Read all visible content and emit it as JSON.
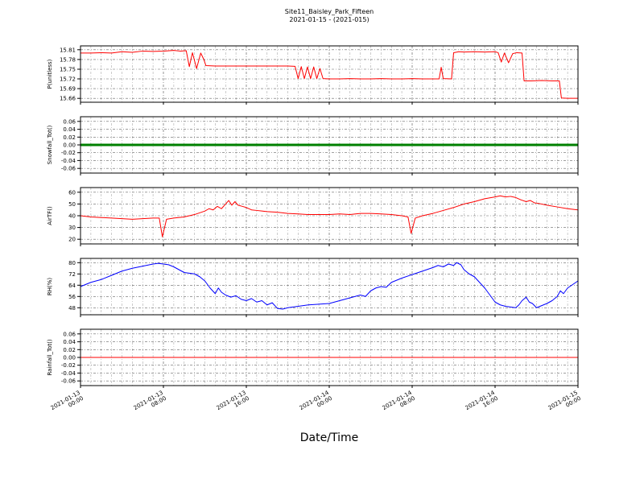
{
  "figure": {
    "title": "Site11_Baisley_Park_Fifteen",
    "subtitle": "2021-01-15 - (2021-015)",
    "xlabel": "Date/Time"
  },
  "xaxis": {
    "label": "Date/Time",
    "range_hours": [
      0,
      48
    ],
    "major_ticks_hours": [
      0,
      8,
      16,
      24,
      32,
      40,
      48
    ],
    "tick_labels": [
      [
        "2021-01-13",
        "00:00"
      ],
      [
        "2021-01-13",
        "08:00"
      ],
      [
        "2021-01-13",
        "16:00"
      ],
      [
        "2021-01-14",
        "00:00"
      ],
      [
        "2021-01-14",
        "08:00"
      ],
      [
        "2021-01-14",
        "16:00"
      ],
      [
        "2021-01-15",
        "00:00"
      ]
    ]
  },
  "chart_data": [
    {
      "type": "line",
      "ylabel": "P(unitless)",
      "color": "#ff0000",
      "line_width": 1,
      "ylim": [
        15.648,
        15.822
      ],
      "yticks": [
        15.66,
        15.69,
        15.72,
        15.75,
        15.78,
        15.81
      ],
      "ytick_labels": [
        "15.66",
        "15.69",
        "15.72",
        "15.75",
        "15.78",
        "15.81"
      ],
      "points": [
        [
          0,
          15.8
        ],
        [
          1,
          15.8
        ],
        [
          2,
          15.801
        ],
        [
          3,
          15.8
        ],
        [
          4,
          15.804
        ],
        [
          5,
          15.802
        ],
        [
          6,
          15.806
        ],
        [
          7,
          15.805
        ],
        [
          8,
          15.806
        ],
        [
          9,
          15.808
        ],
        [
          9.6,
          15.806
        ],
        [
          10.2,
          15.807
        ],
        [
          10.5,
          15.758
        ],
        [
          10.8,
          15.801
        ],
        [
          11.2,
          15.752
        ],
        [
          11.6,
          15.8
        ],
        [
          11.9,
          15.78
        ],
        [
          12.1,
          15.761
        ],
        [
          13,
          15.76
        ],
        [
          14,
          15.76
        ],
        [
          15,
          15.76
        ],
        [
          16,
          15.76
        ],
        [
          17,
          15.76
        ],
        [
          18,
          15.76
        ],
        [
          19,
          15.76
        ],
        [
          20,
          15.76
        ],
        [
          20.7,
          15.759
        ],
        [
          21.0,
          15.721
        ],
        [
          21.3,
          15.758
        ],
        [
          21.6,
          15.721
        ],
        [
          21.9,
          15.757
        ],
        [
          22.2,
          15.721
        ],
        [
          22.5,
          15.757
        ],
        [
          22.8,
          15.721
        ],
        [
          23.1,
          15.752
        ],
        [
          23.4,
          15.721
        ],
        [
          24,
          15.72
        ],
        [
          25,
          15.72
        ],
        [
          26,
          15.721
        ],
        [
          27,
          15.72
        ],
        [
          28,
          15.72
        ],
        [
          29,
          15.721
        ],
        [
          30,
          15.72
        ],
        [
          31,
          15.72
        ],
        [
          32,
          15.721
        ],
        [
          33,
          15.72
        ],
        [
          34,
          15.72
        ],
        [
          34.6,
          15.72
        ],
        [
          34.8,
          15.756
        ],
        [
          35.0,
          15.721
        ],
        [
          35.8,
          15.72
        ],
        [
          36.0,
          15.801
        ],
        [
          36.5,
          15.804
        ],
        [
          37,
          15.803
        ],
        [
          38,
          15.804
        ],
        [
          39,
          15.803
        ],
        [
          40,
          15.804
        ],
        [
          40.3,
          15.801
        ],
        [
          40.6,
          15.772
        ],
        [
          40.9,
          15.8
        ],
        [
          41.3,
          15.77
        ],
        [
          41.7,
          15.798
        ],
        [
          42.1,
          15.801
        ],
        [
          42.6,
          15.8
        ],
        [
          42.8,
          15.714
        ],
        [
          43.5,
          15.714
        ],
        [
          44.5,
          15.715
        ],
        [
          45.5,
          15.714
        ],
        [
          46.2,
          15.714
        ],
        [
          46.4,
          15.661
        ],
        [
          47,
          15.66
        ],
        [
          48,
          15.66
        ]
      ]
    },
    {
      "type": "line",
      "ylabel": "Snowfall_Tot()",
      "color": "#008000",
      "line_width": 3,
      "ylim": [
        -0.072,
        0.072
      ],
      "yticks": [
        -0.06,
        -0.04,
        -0.02,
        0.0,
        0.02,
        0.04,
        0.06
      ],
      "ytick_labels": [
        "-0.06",
        "-0.04",
        "-0.02",
        "0.00",
        "0.02",
        "0.04",
        "0.06"
      ],
      "points": [
        [
          0,
          0
        ],
        [
          48,
          0
        ]
      ]
    },
    {
      "type": "line",
      "ylabel": "AirTF()",
      "color": "#ff0000",
      "line_width": 1,
      "ylim": [
        16,
        64
      ],
      "yticks": [
        20,
        30,
        40,
        50,
        60
      ],
      "ytick_labels": [
        "20",
        "30",
        "40",
        "50",
        "60"
      ],
      "points": [
        [
          0,
          40
        ],
        [
          0.5,
          39.5
        ],
        [
          1,
          39
        ],
        [
          2,
          38.5
        ],
        [
          3,
          38
        ],
        [
          4,
          37.5
        ],
        [
          5,
          37
        ],
        [
          6,
          37.5
        ],
        [
          7,
          38
        ],
        [
          7.6,
          38
        ],
        [
          7.9,
          22
        ],
        [
          8.3,
          37
        ],
        [
          9,
          38
        ],
        [
          10,
          39
        ],
        [
          11,
          41
        ],
        [
          12,
          44
        ],
        [
          12.4,
          46
        ],
        [
          12.8,
          45
        ],
        [
          13.2,
          48
        ],
        [
          13.6,
          46
        ],
        [
          14,
          50
        ],
        [
          14.3,
          53
        ],
        [
          14.6,
          49
        ],
        [
          14.9,
          52
        ],
        [
          15.2,
          49
        ],
        [
          15.6,
          48
        ],
        [
          16,
          47
        ],
        [
          16.5,
          45
        ],
        [
          17,
          44.5
        ],
        [
          17.5,
          44
        ],
        [
          18,
          43.5
        ],
        [
          19,
          43
        ],
        [
          20,
          42
        ],
        [
          21,
          41.5
        ],
        [
          22,
          41
        ],
        [
          23,
          41
        ],
        [
          24,
          41
        ],
        [
          25,
          41.5
        ],
        [
          26,
          41
        ],
        [
          27,
          42
        ],
        [
          28,
          42
        ],
        [
          29,
          41.5
        ],
        [
          30,
          41
        ],
        [
          31,
          40
        ],
        [
          31.6,
          39
        ],
        [
          31.9,
          25
        ],
        [
          32.3,
          38
        ],
        [
          33,
          40
        ],
        [
          34,
          42
        ],
        [
          35,
          44.5
        ],
        [
          36,
          47
        ],
        [
          37,
          50
        ],
        [
          38,
          52
        ],
        [
          39,
          54.5
        ],
        [
          40,
          56
        ],
        [
          40.5,
          57
        ],
        [
          41,
          56
        ],
        [
          41.5,
          56.5
        ],
        [
          42,
          55.5
        ],
        [
          42.5,
          53.5
        ],
        [
          43,
          52
        ],
        [
          43.4,
          53
        ],
        [
          43.8,
          51
        ],
        [
          44.2,
          50.5
        ],
        [
          45,
          49
        ],
        [
          46,
          47.5
        ],
        [
          47,
          46
        ],
        [
          48,
          45
        ]
      ]
    },
    {
      "type": "line",
      "ylabel": "RH(%)",
      "color": "#0000ff",
      "line_width": 1,
      "ylim": [
        43,
        83
      ],
      "yticks": [
        48,
        56,
        64,
        72,
        80
      ],
      "ytick_labels": [
        "48",
        "56",
        "64",
        "72",
        "80"
      ],
      "points": [
        [
          0,
          63
        ],
        [
          0.5,
          64.5
        ],
        [
          1,
          66
        ],
        [
          2,
          68
        ],
        [
          3,
          71
        ],
        [
          4,
          74
        ],
        [
          5,
          76
        ],
        [
          6,
          77.5
        ],
        [
          7,
          79
        ],
        [
          7.5,
          79.5
        ],
        [
          8,
          79
        ],
        [
          8.5,
          78.5
        ],
        [
          9,
          77
        ],
        [
          9.5,
          75
        ],
        [
          10,
          73
        ],
        [
          10.5,
          72.5
        ],
        [
          11,
          72
        ],
        [
          11.5,
          70
        ],
        [
          12,
          67
        ],
        [
          12.5,
          62
        ],
        [
          13,
          58
        ],
        [
          13.3,
          62
        ],
        [
          13.6,
          59
        ],
        [
          14,
          57
        ],
        [
          14.5,
          55.5
        ],
        [
          15,
          56.5
        ],
        [
          15.5,
          54
        ],
        [
          16,
          53
        ],
        [
          16.5,
          54.5
        ],
        [
          17,
          52
        ],
        [
          17.5,
          53
        ],
        [
          18,
          50
        ],
        [
          18.5,
          51.5
        ],
        [
          19,
          47.5
        ],
        [
          19.5,
          47
        ],
        [
          20,
          48
        ],
        [
          21,
          49
        ],
        [
          22,
          50
        ],
        [
          23,
          50.5
        ],
        [
          24,
          51
        ],
        [
          25,
          53
        ],
        [
          26,
          55
        ],
        [
          27,
          57
        ],
        [
          27.5,
          56
        ],
        [
          28,
          60
        ],
        [
          28.5,
          62
        ],
        [
          29,
          63
        ],
        [
          29.5,
          62.5
        ],
        [
          30,
          66
        ],
        [
          31,
          69
        ],
        [
          32,
          71.5
        ],
        [
          33,
          74
        ],
        [
          34,
          76.5
        ],
        [
          34.5,
          78
        ],
        [
          35,
          77
        ],
        [
          35.5,
          79
        ],
        [
          36,
          78
        ],
        [
          36.3,
          80
        ],
        [
          36.7,
          78.5
        ],
        [
          37,
          75
        ],
        [
          37.5,
          72
        ],
        [
          38,
          70
        ],
        [
          38.5,
          66
        ],
        [
          39,
          62
        ],
        [
          39.5,
          57
        ],
        [
          40,
          52
        ],
        [
          40.5,
          50
        ],
        [
          41,
          49
        ],
        [
          41.5,
          48.5
        ],
        [
          42,
          48
        ],
        [
          42.3,
          50
        ],
        [
          42.6,
          53
        ],
        [
          43,
          55.5
        ],
        [
          43.3,
          52
        ],
        [
          43.6,
          51
        ],
        [
          44,
          48
        ],
        [
          44.5,
          49.5
        ],
        [
          45,
          51
        ],
        [
          45.5,
          53
        ],
        [
          46,
          56
        ],
        [
          46.3,
          60
        ],
        [
          46.6,
          58
        ],
        [
          47,
          62
        ],
        [
          47.5,
          64.5
        ],
        [
          48,
          67
        ]
      ]
    },
    {
      "type": "line",
      "ylabel": "Rainfall_Tot()",
      "color": "#ff0000",
      "line_width": 1,
      "ylim": [
        -0.072,
        0.072
      ],
      "yticks": [
        -0.06,
        -0.04,
        -0.02,
        0.0,
        0.02,
        0.04,
        0.06
      ],
      "ytick_labels": [
        "-0.06",
        "-0.04",
        "-0.02",
        "0.00",
        "0.02",
        "0.04",
        "0.06"
      ],
      "points": [
        [
          0,
          0
        ],
        [
          48,
          0
        ]
      ]
    }
  ]
}
